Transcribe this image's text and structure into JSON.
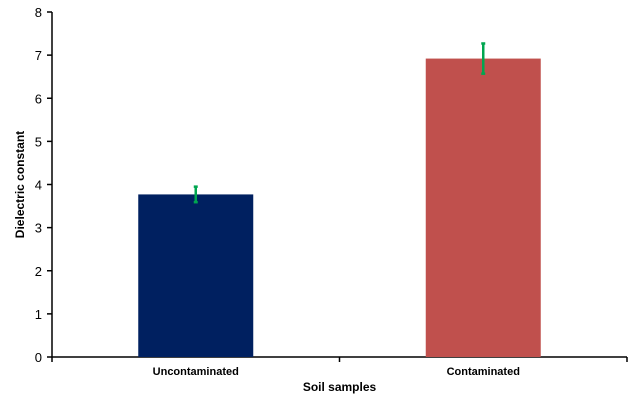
{
  "chart_data": {
    "type": "bar",
    "title": "",
    "xlabel": "Soil samples",
    "ylabel": "Dielectric constant",
    "ylim": [
      0,
      8
    ],
    "yticks": [
      0,
      1,
      2,
      3,
      4,
      5,
      6,
      7,
      8
    ],
    "categories": [
      "Uncontaminated",
      "Contaminated"
    ],
    "values": [
      3.77,
      6.92
    ],
    "errors": [
      0.18,
      0.35
    ],
    "grid": false,
    "legend": "none",
    "colors": {
      "bars": [
        "#002060",
        "#C0504D"
      ],
      "error_bars": "#00A650",
      "axis": "#000000"
    }
  }
}
